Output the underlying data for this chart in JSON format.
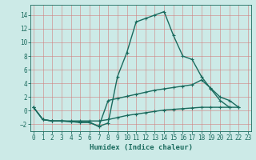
{
  "xlabel": "Humidex (Indice chaleur)",
  "x": [
    0,
    1,
    2,
    3,
    4,
    5,
    6,
    7,
    8,
    9,
    10,
    11,
    12,
    13,
    14,
    15,
    16,
    17,
    18,
    19,
    20,
    21,
    22,
    23
  ],
  "line1": [
    0.5,
    -1.3,
    -1.5,
    -1.5,
    -1.6,
    -1.7,
    -1.7,
    -2.3,
    -1.8,
    5.0,
    8.5,
    13.0,
    13.5,
    14.0,
    14.5,
    11.0,
    8.0,
    7.5,
    5.0,
    3.2,
    1.5,
    0.5,
    null,
    null
  ],
  "line2": [
    0.5,
    -1.3,
    -1.5,
    -1.5,
    -1.6,
    -1.7,
    -1.7,
    -2.3,
    1.5,
    1.8,
    2.1,
    2.4,
    2.7,
    3.0,
    3.2,
    3.4,
    3.6,
    3.8,
    4.5,
    3.3,
    2.0,
    1.5,
    0.5,
    null
  ],
  "line3": [
    0.5,
    -1.3,
    -1.5,
    -1.5,
    -1.5,
    -1.5,
    -1.5,
    -1.5,
    -1.3,
    -1.0,
    -0.7,
    -0.5,
    -0.3,
    -0.1,
    0.1,
    0.2,
    0.3,
    0.4,
    0.5,
    0.5,
    0.5,
    0.5,
    0.5,
    null
  ],
  "color": "#1a6b5e",
  "bg_color": "#cceae7",
  "grid_color": "#b0c8c5",
  "ylim": [
    -3,
    15.5
  ],
  "xlim": [
    -0.3,
    23.3
  ],
  "yticks": [
    -2,
    0,
    2,
    4,
    6,
    8,
    10,
    12,
    14
  ],
  "xticks": [
    0,
    1,
    2,
    3,
    4,
    5,
    6,
    7,
    8,
    9,
    10,
    11,
    12,
    13,
    14,
    15,
    16,
    17,
    18,
    19,
    20,
    21,
    22,
    23
  ],
  "marker": "+",
  "markersize": 3.5,
  "linewidth": 1.0
}
